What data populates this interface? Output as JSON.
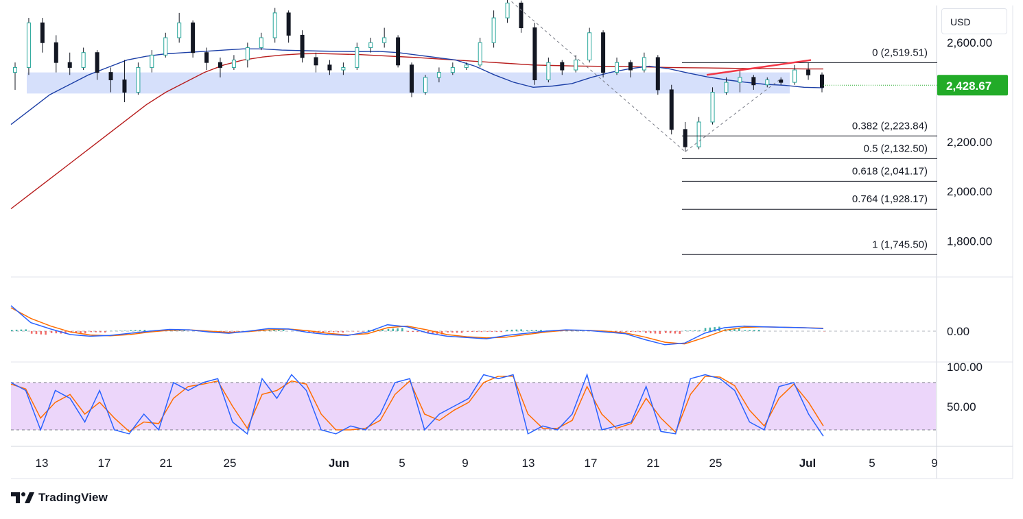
{
  "currency_button": "USD",
  "brand": {
    "name": "TradingView",
    "icon": "tradingview-logo-icon"
  },
  "chart_data": [
    {
      "type": "candlestick",
      "title": "",
      "price_axis_ticks": [
        {
          "value": 2600,
          "label": "2,600.00"
        },
        {
          "value": 2200,
          "label": "2,200.00"
        },
        {
          "value": 2000,
          "label": "2,000.00"
        },
        {
          "value": 1800,
          "label": "1,800.00"
        }
      ],
      "ylim": [
        1655,
        2750
      ],
      "last_price": {
        "value": 2428.67,
        "label": "2,428.67",
        "color": "#22ab28"
      },
      "time_axis_labels": [
        "13",
        "17",
        "21",
        "25",
        "Jun",
        "5",
        "9",
        "13",
        "17",
        "21",
        "25",
        "Jul",
        "5",
        "9"
      ],
      "grid": false,
      "support_zone": {
        "from": 2395,
        "to": 2480,
        "color": "#d6e0fb"
      },
      "fibonacci": {
        "from_low": 2160,
        "levels": [
          {
            "ratio": "0",
            "value": 2519.51,
            "label": "0 (2,519.51)"
          },
          {
            "ratio": "0.382",
            "value": 2223.84,
            "label": "0.382 (2,223.84)"
          },
          {
            "ratio": "0.5",
            "value": 2132.5,
            "label": "0.5 (2,132.50)"
          },
          {
            "ratio": "0.618",
            "value": 2041.17,
            "label": "0.618 (2,041.17)"
          },
          {
            "ratio": "0.764",
            "value": 1928.17,
            "label": "0.764 (1,928.17)"
          },
          {
            "ratio": "1",
            "value": 1745.5,
            "label": "1 (1,745.50)"
          }
        ]
      },
      "ohlc_daily": [
        [
          2480,
          2520,
          2410,
          2500
        ],
        [
          2500,
          2700,
          2470,
          2680
        ],
        [
          2680,
          2700,
          2560,
          2600
        ],
        [
          2600,
          2630,
          2480,
          2520
        ],
        [
          2520,
          2560,
          2470,
          2500
        ],
        [
          2500,
          2580,
          2490,
          2560
        ],
        [
          2560,
          2570,
          2450,
          2480
        ],
        [
          2480,
          2500,
          2400,
          2450
        ],
        [
          2450,
          2530,
          2360,
          2400
        ],
        [
          2400,
          2520,
          2390,
          2500
        ],
        [
          2500,
          2570,
          2480,
          2550
        ],
        [
          2550,
          2640,
          2540,
          2620
        ],
        [
          2620,
          2720,
          2600,
          2680
        ],
        [
          2680,
          2690,
          2540,
          2560
        ],
        [
          2560,
          2580,
          2490,
          2520
        ],
        [
          2520,
          2540,
          2460,
          2500
        ],
        [
          2500,
          2550,
          2490,
          2530
        ],
        [
          2530,
          2600,
          2500,
          2580
        ],
        [
          2580,
          2640,
          2570,
          2620
        ],
        [
          2620,
          2740,
          2600,
          2720
        ],
        [
          2720,
          2730,
          2600,
          2630
        ],
        [
          2630,
          2650,
          2520,
          2540
        ],
        [
          2540,
          2560,
          2480,
          2510
        ],
        [
          2510,
          2530,
          2470,
          2490
        ],
        [
          2490,
          2520,
          2470,
          2500
        ],
        [
          2500,
          2600,
          2490,
          2580
        ],
        [
          2580,
          2620,
          2560,
          2600
        ],
        [
          2600,
          2660,
          2580,
          2620
        ],
        [
          2620,
          2630,
          2500,
          2510
        ],
        [
          2510,
          2520,
          2380,
          2400
        ],
        [
          2400,
          2470,
          2390,
          2460
        ],
        [
          2460,
          2500,
          2440,
          2480
        ],
        [
          2480,
          2520,
          2470,
          2500
        ],
        [
          2500,
          2520,
          2490,
          2510
        ],
        [
          2510,
          2620,
          2500,
          2600
        ],
        [
          2600,
          2730,
          2580,
          2700
        ],
        [
          2700,
          2780,
          2680,
          2760
        ],
        [
          2760,
          2770,
          2640,
          2660
        ],
        [
          2660,
          2680,
          2430,
          2450
        ],
        [
          2450,
          2540,
          2440,
          2520
        ],
        [
          2520,
          2530,
          2470,
          2490
        ],
        [
          2490,
          2550,
          2480,
          2530
        ],
        [
          2530,
          2660,
          2520,
          2640
        ],
        [
          2640,
          2650,
          2460,
          2480
        ],
        [
          2480,
          2540,
          2470,
          2520
        ],
        [
          2520,
          2530,
          2460,
          2490
        ],
        [
          2490,
          2560,
          2480,
          2540
        ],
        [
          2540,
          2550,
          2390,
          2410
        ],
        [
          2410,
          2430,
          2230,
          2250
        ],
        [
          2250,
          2280,
          2160,
          2180
        ],
        [
          2180,
          2300,
          2170,
          2280
        ],
        [
          2280,
          2420,
          2270,
          2400
        ],
        [
          2400,
          2460,
          2390,
          2440
        ],
        [
          2440,
          2490,
          2400,
          2460
        ],
        [
          2460,
          2470,
          2410,
          2430
        ],
        [
          2430,
          2460,
          2420,
          2450
        ],
        [
          2450,
          2460,
          2430,
          2440
        ],
        [
          2440,
          2510,
          2430,
          2490
        ],
        [
          2490,
          2520,
          2450,
          2470
        ],
        [
          2470,
          2480,
          2400,
          2420
        ]
      ],
      "ma_blue": [
        2270,
        2330,
        2390,
        2430,
        2470,
        2500,
        2530,
        2545,
        2555,
        2560,
        2565,
        2570,
        2575,
        2575,
        2570,
        2568,
        2566,
        2565,
        2564,
        2565,
        2560,
        2550,
        2540,
        2530,
        2505,
        2470,
        2440,
        2420,
        2425,
        2435,
        2460,
        2480,
        2495,
        2505,
        2495,
        2478,
        2462,
        2450,
        2440,
        2432,
        2428,
        2420,
        2418
      ],
      "ma_red": [
        1930,
        1990,
        2050,
        2110,
        2170,
        2230,
        2290,
        2350,
        2400,
        2440,
        2480,
        2510,
        2530,
        2542,
        2550,
        2555,
        2556,
        2554,
        2552,
        2548,
        2544,
        2540,
        2535,
        2530,
        2525,
        2520,
        2515,
        2510,
        2508,
        2506,
        2505,
        2504,
        2503,
        2502,
        2500,
        2499,
        2498,
        2497,
        2496,
        2495,
        2495,
        2494,
        2494
      ],
      "ma_colors": {
        "blue": "#1c3fa6",
        "red": "#b71c1c"
      },
      "trendline_red": {
        "from": 2470,
        "to": 2530,
        "color": "#f23645"
      },
      "legend": "none"
    },
    {
      "type": "macd",
      "zero_label": "0.00",
      "macd_line": [
        60,
        20,
        5,
        -8,
        -12,
        -10,
        -5,
        0,
        4,
        3,
        -2,
        -5,
        0,
        6,
        5,
        -3,
        -8,
        -10,
        -2,
        15,
        10,
        -4,
        -12,
        -15,
        -18,
        -10,
        -5,
        0,
        3,
        2,
        -2,
        -6,
        -20,
        -32,
        -28,
        -5,
        8,
        12,
        10,
        9,
        8,
        6
      ],
      "signal_line": [
        55,
        30,
        12,
        -2,
        -9,
        -11,
        -8,
        -2,
        2,
        3,
        0,
        -3,
        -1,
        3,
        5,
        1,
        -5,
        -9,
        -6,
        8,
        12,
        3,
        -8,
        -13,
        -16,
        -14,
        -8,
        -2,
        2,
        2,
        0,
        -4,
        -14,
        -26,
        -30,
        -15,
        2,
        9,
        10,
        9,
        8,
        7
      ],
      "histogram": [
        4,
        -8,
        -6,
        -5,
        -3,
        1,
        3,
        2,
        2,
        0,
        -2,
        -2,
        1,
        3,
        0,
        -4,
        -3,
        -1,
        4,
        7,
        -2,
        -7,
        -4,
        -2,
        -2,
        4,
        3,
        2,
        1,
        0,
        -2,
        -2,
        -6,
        -6,
        2,
        10,
        6,
        3,
        0,
        0,
        0,
        -1
      ],
      "colors": {
        "macd": "#2962ff",
        "signal": "#ff6d00",
        "hist_pos": "#26a69a",
        "hist_neg": "#ef5350"
      }
    },
    {
      "type": "stochastic",
      "ticks": [
        {
          "value": 100,
          "label": "100.00"
        },
        {
          "value": 50,
          "label": "50.00"
        }
      ],
      "band": [
        20,
        80
      ],
      "k_line": [
        80,
        70,
        20,
        70,
        60,
        30,
        70,
        20,
        15,
        40,
        20,
        80,
        70,
        80,
        85,
        30,
        15,
        85,
        60,
        90,
        70,
        20,
        15,
        25,
        20,
        40,
        80,
        85,
        20,
        40,
        50,
        60,
        90,
        85,
        90,
        15,
        25,
        20,
        40,
        90,
        20,
        25,
        30,
        75,
        18,
        15,
        85,
        90,
        85,
        70,
        30,
        20,
        75,
        80,
        40,
        12
      ],
      "d_line": [
        78,
        72,
        35,
        55,
        65,
        40,
        55,
        35,
        18,
        30,
        28,
        60,
        75,
        78,
        82,
        50,
        22,
        65,
        70,
        82,
        78,
        40,
        20,
        20,
        22,
        32,
        65,
        82,
        40,
        32,
        45,
        55,
        80,
        88,
        88,
        40,
        22,
        22,
        32,
        75,
        40,
        22,
        28,
        60,
        35,
        17,
        65,
        88,
        87,
        76,
        45,
        25,
        60,
        78,
        55,
        25
      ],
      "colors": {
        "k": "#2962ff",
        "d": "#ff6d00",
        "band_fill": "#ecd6fa"
      }
    }
  ]
}
